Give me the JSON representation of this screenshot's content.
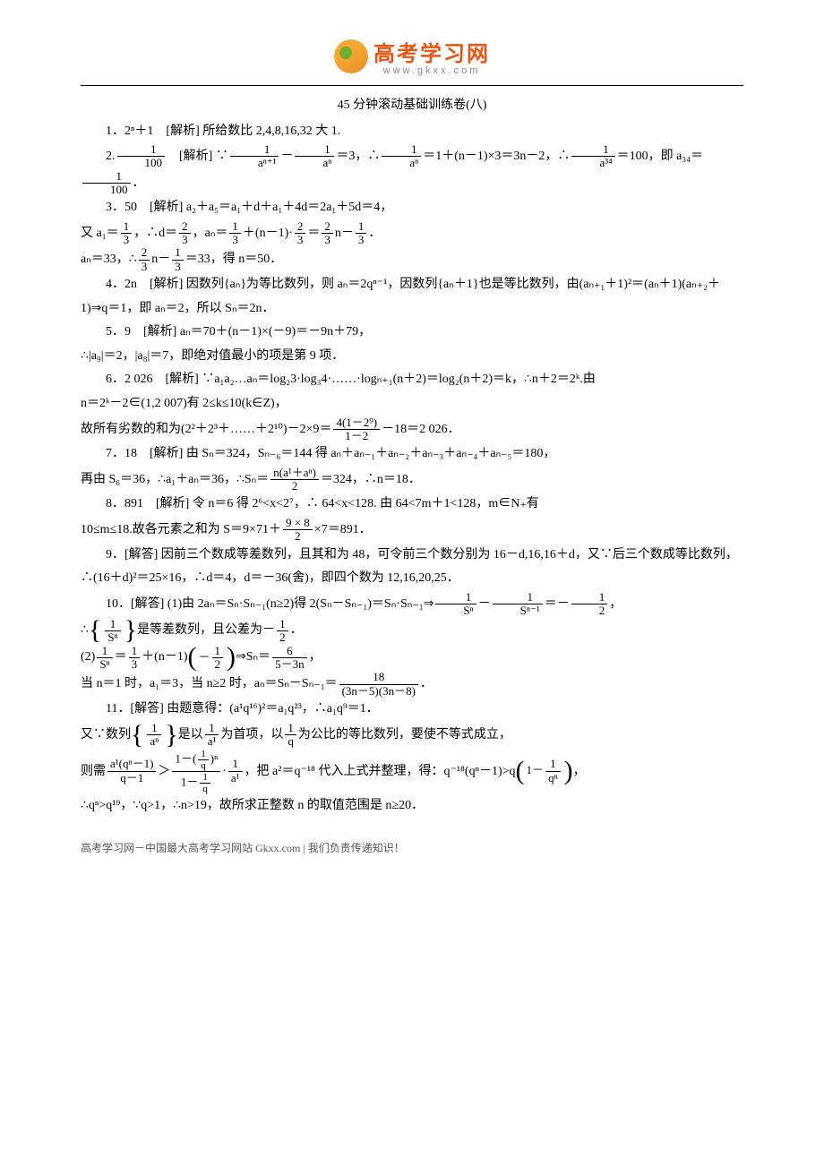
{
  "logo": {
    "cn": "高考学习网",
    "en": "www.gkxx.com"
  },
  "title": "45 分钟滚动基础训练卷(八)",
  "items": {
    "p1": "1．2ⁿ＋1　[解析] 所给数比 2,4,8,16,32 大 1.",
    "p2_pre": "2.",
    "p2_mid": "　[解析] ∵",
    "p2_eq": "＝3，∴",
    "p2_eq2": "＝1＋(n－1)×3＝3n－2，∴",
    "p2_eq3": "＝100，即 a₃₄＝",
    "p2_dot": "．",
    "p3_1": "3．50　[解析] a₂＋a₅＝a₁＋d＋a₁＋4d＝2a₁＋5d＝4，",
    "p3_2a": "又 a₁＝",
    "p3_2b": "，∴d＝",
    "p3_2c": "，aₙ＝",
    "p3_2d": "＋(n－1)·",
    "p3_2e": "＝",
    "p3_2f": "n－",
    "p3_2g": "．",
    "p3_3a": "aₙ＝33，∴",
    "p3_3b": "n－",
    "p3_3c": "＝33，得 n＝50．",
    "p4": "4．2n　[解析] 因数列{aₙ}为等比数列，则 aₙ＝2qⁿ⁻¹，因数列{aₙ＋1}也是等比数列，由(aₙ₊₁＋1)²＝(aₙ＋1)(aₙ₊₂＋1)⇒q＝1，即 aₙ＝2，所以 Sₙ＝2n．",
    "p5_1": "5．9　[解析] aₙ＝70＋(n－1)×(－9)＝－9n＋79，",
    "p5_2": "∴|a₉|＝2，|a₈|＝7，即绝对值最小的项是第 9 项．",
    "p6_1": "6．2 026　[解析] ∵a₁a₂…aₙ＝log₂3·log₃4·……·logₙ₊₁(n＋2)＝log₂(n＋2)＝k，∴n＋2＝2ᵏ.由",
    "p6_2": "n＝2ᵏ－2∈(1,2 007)有 2≤k≤10(k∈Z)，",
    "p6_3a": "故所有劣数的和为(2²＋2³＋……＋2¹⁰)－2×9＝",
    "p6_3b": "－18＝2 026．",
    "p7_1": "7．18　[解析] 由 Sₙ＝324，Sₙ₋₆＝144 得 aₙ＋aₙ₋₁＋aₙ₋₂＋aₙ₋₃＋aₙ₋₄＋aₙ₋₅＝180，",
    "p7_2a": "再由 S₆＝36，∴a₁＋aₙ＝36，∴Sₙ＝",
    "p7_2b": "＝324，∴n＝18．",
    "p8_1": "8．891　[解析] 令 n＝6 得 2⁶<x<2⁷，∴ 64<x<128. 由 64<7m＋1<128，m∈N₊有",
    "p8_2a": "10≤m≤18.故各元素之和为 S＝9×71＋",
    "p8_2b": "×7＝891．",
    "p9": "9．[解答] 因前三个数成等差数列，且其和为 48，可令前三个数分别为 16－d,16,16＋d，又∵后三个数成等比数列，∴(16＋d)²＝25×16，∴d＝4，d＝－36(舍)，即四个数为 12,16,20,25．",
    "p10_1a": "10．[解答] (1)由 2aₙ＝Sₙ·Sₙ₋₁(n≥2)得 2(Sₙ－Sₙ₋₁)＝Sₙ·Sₙ₋₁⇒",
    "p10_1b": "－",
    "p10_1c": "＝－",
    "p10_1d": "，",
    "p10_2a": "∴",
    "p10_2b": "是等差数列，且公差为－",
    "p10_2c": "．",
    "p10_3a": "(2)",
    "p10_3b": "＝",
    "p10_3c": "＋(n－1)",
    "p10_3d": "⇒Sₙ＝",
    "p10_3e": "，",
    "p10_4a": "当 n＝1 时，a₁＝3，当 n≥2 时，aₙ＝Sₙ－Sₙ₋₁＝",
    "p10_4b": "．",
    "p11_1": "11．[解答] 由题意得：(a¹q¹⁶)²＝a₁q²³，∴a₁q⁹＝1．",
    "p11_2a": "又∵数列",
    "p11_2b": "是以",
    "p11_2c": "为首项，以",
    "p11_2d": "为公比的等比数列，要使不等式成立，",
    "p11_3a": "则需",
    "p11_3b": "＞",
    "p11_3c": "，把 a²＝q⁻¹⁸ 代入上式并整理，得：q⁻¹⁸(qⁿ－1)>q",
    "p11_3d": "，",
    "p11_4": "∴qⁿ>q¹⁹，∵q>1，∴n>19，故所求正整数 n 的取值范围是 n≥20．"
  },
  "fracs": {
    "f1_100": {
      "n": "1",
      "d": "100"
    },
    "f_an1_an": {
      "n": "1",
      "d": "aⁿ⁺¹"
    },
    "f_an": {
      "n": "1",
      "d": "aⁿ"
    },
    "f_a34": {
      "n": "1",
      "d": "a³⁴"
    },
    "f1_3": {
      "n": "1",
      "d": "3"
    },
    "f2_3": {
      "n": "2",
      "d": "3"
    },
    "f4geom": {
      "n": "4(1－2⁹)",
      "d": "1－2"
    },
    "f_na1an": {
      "n": "n(a¹＋aⁿ)",
      "d": "2"
    },
    "f9x8_2": {
      "n": "9 × 8",
      "d": "2"
    },
    "f1_Sn": {
      "n": "1",
      "d": "Sⁿ"
    },
    "f1_Sn1": {
      "n": "1",
      "d": "Sⁿ⁻¹"
    },
    "f1_2": {
      "n": "1",
      "d": "2"
    },
    "fneg1_2": {
      "n": "1",
      "d": "2"
    },
    "f6_53n": {
      "n": "6",
      "d": "5－3n"
    },
    "f18_3n": {
      "n": "18",
      "d": "(3n－5)(3n－8)"
    },
    "f1_an_b": {
      "n": "1",
      "d": "aⁿ"
    },
    "f1_a1": {
      "n": "1",
      "d": "a¹"
    },
    "f1_q": {
      "n": "1",
      "d": "q"
    },
    "f_lhs": {
      "n": "a¹(qⁿ－1)",
      "d": "q－1"
    },
    "f_rhs_inner": {
      "n": "1",
      "d": "q"
    },
    "f_rhs_outer_num": "1－",
    "f_rhs_outer_den": "1－",
    "f1_qn": {
      "n": "1",
      "d": "qⁿ"
    }
  },
  "footer": "高考学习网－中国最大高考学习网站 Gkxx.com | 我们负责传递知识！"
}
